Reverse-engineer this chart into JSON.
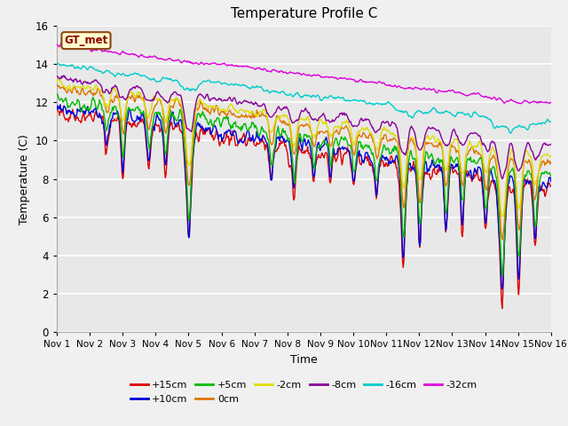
{
  "title": "Temperature Profile C",
  "xlabel": "Time",
  "ylabel": "Temperature (C)",
  "ylim": [
    0,
    16
  ],
  "yticks": [
    0,
    2,
    4,
    6,
    8,
    10,
    12,
    14,
    16
  ],
  "x_labels": [
    "Nov 1",
    "Nov 2",
    "Nov 3",
    "Nov 4",
    "Nov 5",
    "Nov 6",
    "Nov 7",
    "Nov 8",
    "Nov 9",
    "Nov 10",
    "Nov 11",
    "Nov 12",
    "Nov 13",
    "Nov 14",
    "Nov 15",
    "Nov 16"
  ],
  "legend_label": "GT_met",
  "series_labels": [
    "+15cm",
    "+10cm",
    "+5cm",
    "0cm",
    "-2cm",
    "-8cm",
    "-16cm",
    "-32cm"
  ],
  "series_colors": [
    "#dd0000",
    "#0000dd",
    "#00bb00",
    "#dd7700",
    "#dddd00",
    "#880099",
    "#00cccc",
    "#dd00dd"
  ],
  "n_days": 15,
  "pts_per_day": 48,
  "background_color": "#e8e8e8",
  "plot_bg_color": "#e8e8e8",
  "grid_color": "#ffffff",
  "fig_bg_color": "#f0f0f0"
}
